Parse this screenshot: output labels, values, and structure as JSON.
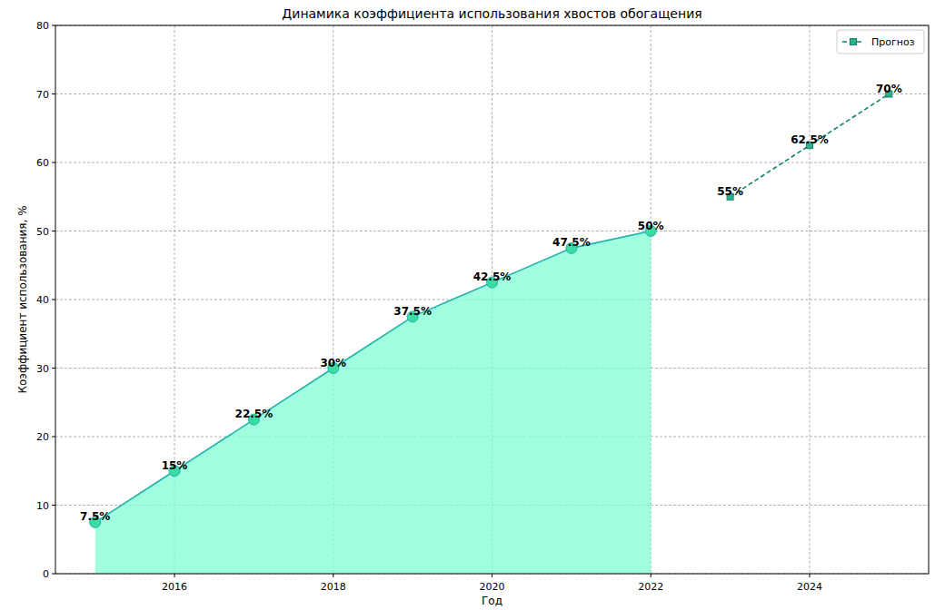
{
  "chart_data": {
    "type": "line",
    "title": "Динамика коэффициента использования хвостов обогащения",
    "x_label": "Год",
    "y_label": "Коэффициент использования, %",
    "x": [
      2015,
      2016,
      2017,
      2018,
      2019,
      2020,
      2021,
      2022,
      2023,
      2024,
      2025
    ],
    "xlim": [
      2014.5,
      2025.5
    ],
    "xticks": [
      2016,
      2018,
      2020,
      2022,
      2024
    ],
    "ylim": [
      0,
      80
    ],
    "yticks": [
      0,
      10,
      20,
      30,
      40,
      50,
      60,
      70,
      80
    ],
    "grid": true,
    "legend": "upper right",
    "data_labels": true,
    "series": [
      {
        "type": "area",
        "color": "#20b2aa",
        "marker": "circle",
        "line_style": "solid",
        "values": [
          7.5,
          15,
          22.5,
          30,
          37.5,
          42.5,
          47.5,
          50,
          null,
          null,
          null
        ],
        "value_labels": [
          "7.5%",
          "15%",
          "22.5%",
          "30%",
          "37.5%",
          "42.5%",
          "47.5%",
          "50%",
          null,
          null,
          null
        ]
      },
      {
        "name": "Прогноз",
        "type": "line",
        "color": "#13806e",
        "marker": "square",
        "line_style": "dashed",
        "values": [
          null,
          null,
          null,
          null,
          null,
          null,
          null,
          null,
          55,
          62.5,
          70
        ],
        "value_labels": [
          null,
          null,
          null,
          null,
          null,
          null,
          null,
          null,
          "55%",
          "62.5%",
          "70%"
        ]
      }
    ]
  }
}
